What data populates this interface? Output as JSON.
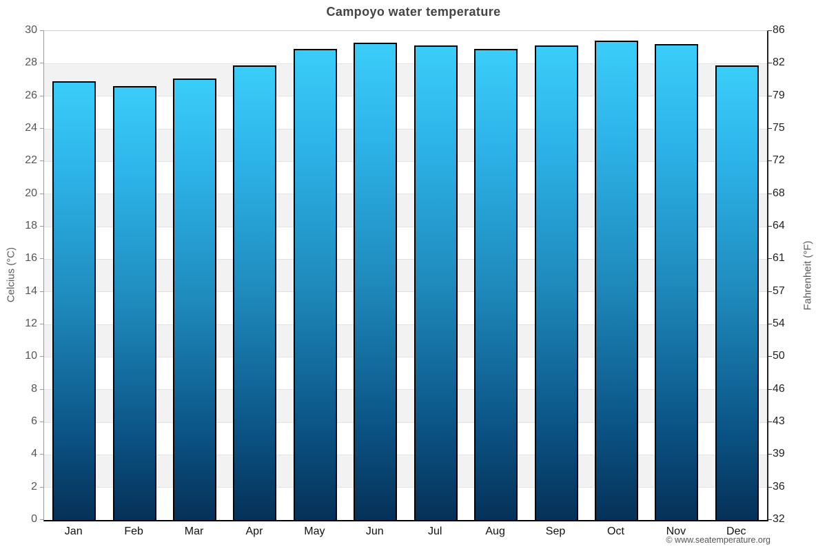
{
  "title": "Campoyo water temperature",
  "footer": {
    "text": "© www.seatemperature.org"
  },
  "chart_data": {
    "type": "bar",
    "title": "Campoyo water temperature",
    "categories": [
      "Jan",
      "Feb",
      "Mar",
      "Apr",
      "May",
      "Jun",
      "Jul",
      "Aug",
      "Sep",
      "Oct",
      "Nov",
      "Dec"
    ],
    "values": [
      26.9,
      26.6,
      27.1,
      27.9,
      28.9,
      29.3,
      29.1,
      28.9,
      29.1,
      29.4,
      29.2,
      27.9
    ],
    "unit": "°C",
    "xlabel": "",
    "ylabel_left": "Celcius (°C)",
    "ylabel_right": "Fahrenheit (°F)",
    "ylim": [
      0,
      30
    ],
    "ytick_step": 2,
    "yticks_celsius": [
      30,
      28,
      26,
      24,
      22,
      20,
      18,
      16,
      14,
      12,
      10,
      8,
      6,
      4,
      2,
      0
    ],
    "yticks_fahrenheit": [
      86,
      82,
      79,
      75,
      72,
      68,
      64,
      61,
      57,
      54,
      50,
      46,
      43,
      39,
      36,
      32
    ],
    "grid": "alternating-horizontal-bands",
    "legend_position": "none",
    "colors": {
      "bar_gradient_top": "#3bcdf9",
      "bar_gradient_upper": "#2db4e9",
      "bar_gradient_mid": "#1f8abc",
      "bar_gradient_lower": "#0b5486",
      "bar_gradient_bottom": "#053157",
      "bar_border": "#000000",
      "band_light": "#ffffff",
      "band_shaded": "#f2f2f2",
      "gridline": "#e2e2e2",
      "axis_left": "#999999",
      "axis_right": "#222222",
      "axis_bottom": "#000000",
      "title_color": "#444444",
      "tick_label_left": "#555555",
      "tick_label_right": "#222222",
      "month_label": "#111111",
      "footer_color": "#555555"
    }
  }
}
